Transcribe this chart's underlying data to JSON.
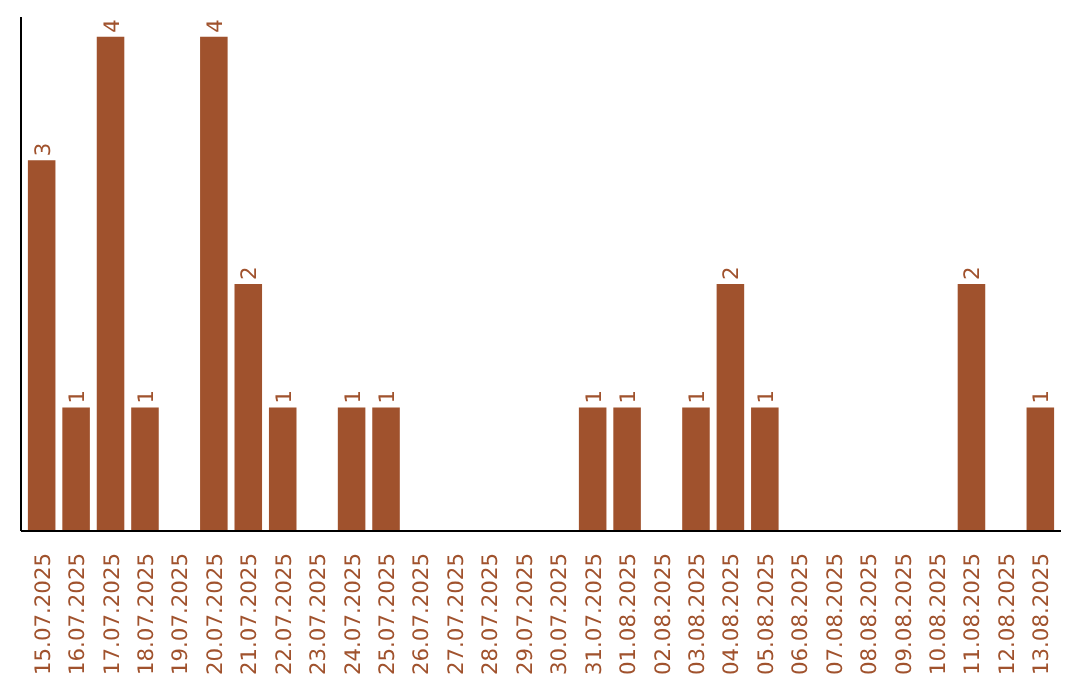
{
  "chart_data": {
    "type": "bar",
    "categories": [
      "15.07.2025",
      "16.07.2025",
      "17.07.2025",
      "18.07.2025",
      "19.07.2025",
      "20.07.2025",
      "21.07.2025",
      "22.07.2025",
      "23.07.2025",
      "24.07.2025",
      "25.07.2025",
      "26.07.2025",
      "27.07.2025",
      "28.07.2025",
      "29.07.2025",
      "30.07.2025",
      "31.07.2025",
      "01.08.2025",
      "02.08.2025",
      "03.08.2025",
      "04.08.2025",
      "05.08.2025",
      "06.08.2025",
      "07.08.2025",
      "08.08.2025",
      "09.08.2025",
      "10.08.2025",
      "11.08.2025",
      "12.08.2025",
      "13.08.2025"
    ],
    "values": [
      3,
      1,
      4,
      1,
      0,
      4,
      2,
      1,
      0,
      1,
      1,
      0,
      0,
      0,
      0,
      0,
      1,
      1,
      0,
      1,
      2,
      1,
      0,
      0,
      0,
      0,
      0,
      2,
      0,
      1
    ],
    "value_labels": [
      "3",
      "1",
      "4",
      "1",
      null,
      "4",
      "2",
      "1",
      null,
      "1",
      "1",
      null,
      null,
      null,
      null,
      null,
      "1",
      "1",
      null,
      "1",
      "2",
      "1",
      null,
      null,
      null,
      null,
      null,
      "2",
      null,
      "1"
    ],
    "color": "#a0522d",
    "tick_labels": "x"
  }
}
